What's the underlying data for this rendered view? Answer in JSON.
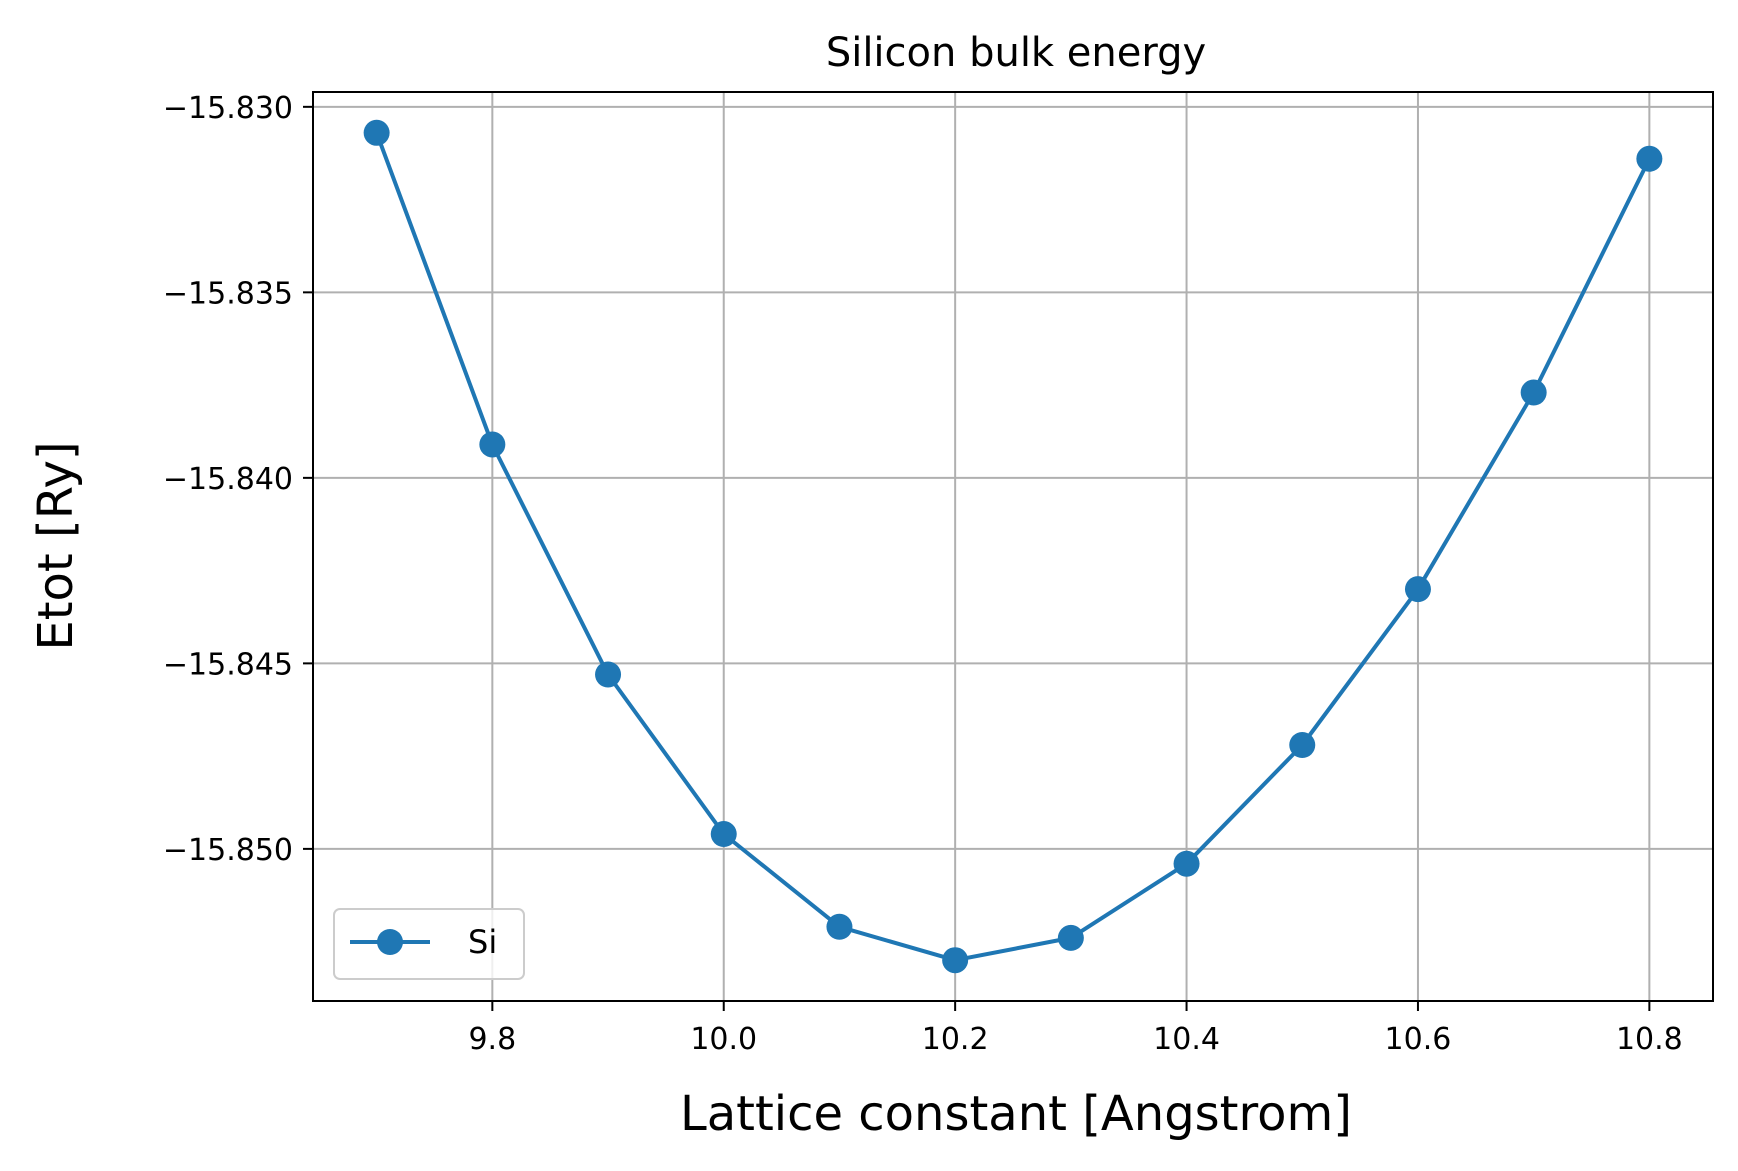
{
  "chart_data": {
    "type": "line",
    "title": "Silicon bulk energy",
    "xlabel": "Lattice constant [Angstrom]",
    "ylabel": "Etot [Ry]",
    "x": [
      9.7,
      9.8,
      9.9,
      10.0,
      10.1,
      10.2,
      10.3,
      10.4,
      10.5,
      10.6,
      10.7,
      10.8
    ],
    "series": [
      {
        "name": "Si",
        "color": "#1f77b4",
        "marker": "circle",
        "values": [
          -15.8307,
          -15.8391,
          -15.8453,
          -15.8496,
          -15.8521,
          -15.853,
          -15.8524,
          -15.8504,
          -15.8472,
          -15.843,
          -15.8377,
          -15.8314
        ]
      }
    ],
    "xlim": [
      9.645,
      10.855
    ],
    "ylim": [
      -15.8541,
      -15.8296
    ],
    "x_ticks": [
      9.8,
      10.0,
      10.2,
      10.4,
      10.6,
      10.8
    ],
    "x_tick_labels": [
      "9.8",
      "10.0",
      "10.2",
      "10.4",
      "10.6",
      "10.8"
    ],
    "y_ticks": [
      -15.83,
      -15.835,
      -15.84,
      -15.845,
      -15.85
    ],
    "y_tick_labels": [
      "−15.830",
      "−15.835",
      "−15.840",
      "−15.845",
      "−15.850"
    ],
    "grid": true,
    "legend_position": "lower-left",
    "colors": {
      "grid": "#b0b0b0",
      "axes": "#000000"
    }
  }
}
